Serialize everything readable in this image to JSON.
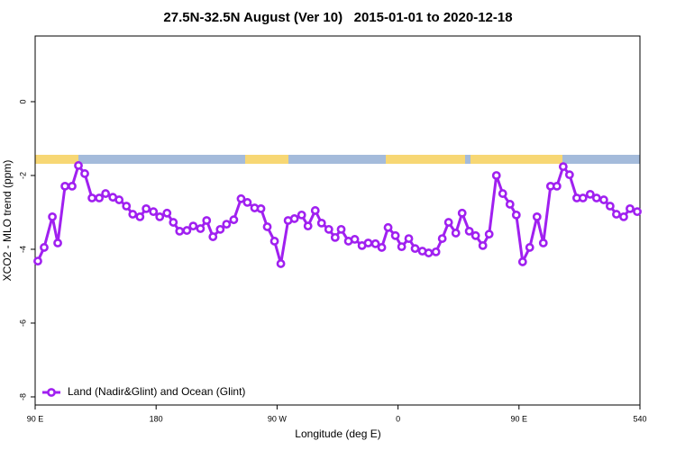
{
  "chart_data": {
    "type": "line",
    "title": "27.5N-32.5N August (Ver 10)   2015-01-01 to 2020-12-18",
    "xlabel": "Longitude (deg E)",
    "ylabel": "XCO2 - MLO trend (ppm)",
    "xlim": [
      90,
      540
    ],
    "ylim": [
      -8.22,
      1.78
    ],
    "xticks": [
      {
        "value": 90,
        "label": "90 E"
      },
      180,
      {
        "value": 270,
        "label": "90 W"
      },
      {
        "value": 360,
        "label": "0"
      },
      {
        "value": 450,
        "label": "90 E"
      },
      540
    ],
    "yticks": [
      0,
      -2,
      -4,
      -6,
      -8
    ],
    "legend": "lower left",
    "x": [
      92.0,
      96.7,
      102.8,
      106.8,
      112.2,
      117.5,
      122.2,
      126.9,
      132.3,
      137.7,
      142.4,
      147.8,
      152.5,
      157.9,
      162.6,
      168.0,
      172.6,
      178.0,
      182.7,
      188.1,
      192.8,
      197.5,
      202.9,
      207.6,
      213.0,
      217.6,
      222.3,
      227.7,
      232.4,
      237.8,
      243.2,
      247.9,
      253.3,
      258.0,
      262.7,
      268.1,
      272.8,
      278.2,
      282.9,
      288.3,
      293.0,
      298.4,
      303.1,
      308.5,
      313.2,
      317.7,
      323.1,
      327.8,
      333.2,
      337.8,
      343.2,
      347.9,
      352.6,
      358.0,
      362.7,
      368.0,
      372.7,
      378.1,
      382.8,
      388.2,
      392.9,
      397.6,
      403.0,
      407.7,
      413.0,
      417.7,
      423.1,
      427.8,
      433.2,
      437.9,
      443.3,
      448.0,
      452.7,
      458.0,
      463.4,
      468.1,
      473.5,
      478.2,
      482.9,
      487.6,
      493.0,
      497.6,
      503.0,
      507.7,
      513.1,
      517.8,
      522.5,
      527.9,
      532.6,
      538.0
    ],
    "series": [
      {
        "name": "Land (Nadir&Glint) and Ocean (Glint)",
        "color": "#a020f0",
        "values": [
          -4.32,
          -3.95,
          -3.12,
          -3.83,
          -2.29,
          -2.29,
          -1.73,
          -1.95,
          -2.61,
          -2.61,
          -2.49,
          -2.59,
          -2.66,
          -2.83,
          -3.05,
          -3.12,
          -2.9,
          -2.98,
          -3.12,
          -3.02,
          -3.27,
          -3.51,
          -3.49,
          -3.37,
          -3.44,
          -3.22,
          -3.66,
          -3.46,
          -3.32,
          -3.2,
          -2.63,
          -2.73,
          -2.88,
          -2.9,
          -3.39,
          -3.78,
          -4.39,
          -3.22,
          -3.17,
          -3.07,
          -3.37,
          -2.95,
          -3.29,
          -3.46,
          -3.68,
          -3.46,
          -3.78,
          -3.73,
          -3.9,
          -3.83,
          -3.85,
          -3.95,
          -3.41,
          -3.63,
          -3.93,
          -3.71,
          -3.98,
          -4.05,
          -4.1,
          -4.07,
          -3.71,
          -3.27,
          -3.56,
          -3.02,
          -3.51,
          -3.63,
          -3.9,
          -3.59,
          -2.0,
          -2.49,
          -2.78,
          -3.07,
          -4.34,
          -3.95,
          -3.12,
          -3.83,
          -2.29,
          -2.29,
          -1.76,
          -1.98,
          -2.61,
          -2.61,
          -2.51,
          -2.61,
          -2.66,
          -2.83,
          -3.05,
          -3.12,
          -2.9,
          -2.98
        ]
      }
    ]
  }
}
